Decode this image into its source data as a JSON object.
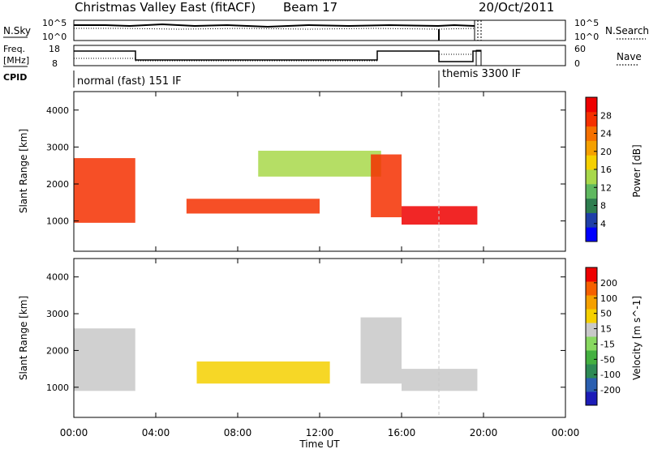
{
  "header": {
    "title": "Christmas Valley East (fitACF)",
    "beam": "Beam 17",
    "date": "20/Oct/2011"
  },
  "noise_panel": {
    "left_label": "N.Sky",
    "left_ticks": [
      "10^5",
      "10^0"
    ],
    "right_ticks": [
      "10^5",
      "10^0"
    ],
    "right_label": "N.Search"
  },
  "freq_panel": {
    "left_label_1": "Freq.",
    "left_label_2": "[MHz]",
    "left_ticks": [
      "18",
      "8"
    ],
    "right_ticks": [
      "60",
      "0"
    ],
    "right_label": "Nave"
  },
  "cpid": {
    "label": "CPID",
    "segment1": "normal (fast) 151 IF",
    "segment2": "themis 3300 IF"
  },
  "x_axis": {
    "label": "Time UT",
    "ticks": [
      "00:00",
      "04:00",
      "08:00",
      "12:00",
      "16:00",
      "20:00",
      "00:00"
    ]
  },
  "power_panel": {
    "ylabel": "Slant Range [km]",
    "yticks": [
      "4000",
      "3000",
      "2000",
      "1000"
    ],
    "colorbar_label": "Power [dB]",
    "colorbar_ticks": [
      "28",
      "24",
      "20",
      "16",
      "12",
      "8",
      "4"
    ],
    "colors": [
      "#0000ff",
      "#1f3fa8",
      "#2e7d4f",
      "#5fb85f",
      "#a8d84a",
      "#f5d000",
      "#f5a000",
      "#f57000",
      "#f53000",
      "#ee0000"
    ]
  },
  "velocity_panel": {
    "ylabel": "Slant Range [km]",
    "yticks": [
      "4000",
      "3000",
      "2000",
      "1000"
    ],
    "colorbar_label": "Velocity [m s^-1]",
    "colorbar_ticks": [
      "200",
      "100",
      "50",
      "15",
      "-15",
      "-50",
      "-100",
      "-200"
    ],
    "colors": [
      "#1c1cb8",
      "#2b5fb0",
      "#2e8a55",
      "#44b040",
      "#88d860",
      "#c8c8c8",
      "#f5d000",
      "#f5a000",
      "#f56000",
      "#ee0000"
    ]
  },
  "chart_data": {
    "type": "heatmap",
    "title": "Christmas Valley East (fitACF)",
    "xlabel": "Time UT",
    "ylabel": "Slant Range [km]",
    "x_range_hours": [
      0,
      24
    ],
    "y_range_km": [
      180,
      4500
    ],
    "power_echo_regions": [
      {
        "start_h": 0.0,
        "end_h": 3.0,
        "range_km": [
          950,
          2700
        ],
        "power_db": 26
      },
      {
        "start_h": 5.5,
        "end_h": 12.0,
        "range_km": [
          1200,
          1600
        ],
        "power_db": 24
      },
      {
        "start_h": 9.0,
        "end_h": 15.0,
        "range_km": [
          2200,
          2900
        ],
        "power_db": 14
      },
      {
        "start_h": 14.5,
        "end_h": 16.0,
        "range_km": [
          1100,
          2800
        ],
        "power_db": 24
      },
      {
        "start_h": 16.0,
        "end_h": 19.7,
        "range_km": [
          900,
          1400
        ],
        "power_db": 28
      }
    ],
    "velocity_echo_regions": [
      {
        "start_h": 0.0,
        "end_h": 3.0,
        "range_km": [
          900,
          2600
        ],
        "velocity": 0
      },
      {
        "start_h": 6.0,
        "end_h": 12.5,
        "range_km": [
          1100,
          1700
        ],
        "velocity": 40
      },
      {
        "start_h": 14.0,
        "end_h": 16.0,
        "range_km": [
          1100,
          2900
        ],
        "velocity": 30
      },
      {
        "start_h": 16.0,
        "end_h": 19.7,
        "range_km": [
          900,
          1500
        ],
        "velocity": 0
      }
    ],
    "power_colorbar_range_db": [
      0,
      30
    ],
    "velocity_colorbar_range": [
      -200,
      200
    ],
    "cpid_change_hour": 18.0,
    "data_end_hour": 19.7
  }
}
